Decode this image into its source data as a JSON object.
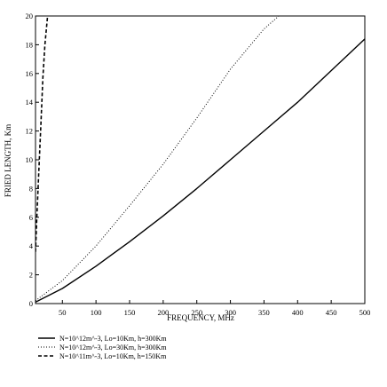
{
  "chart_data": {
    "type": "line",
    "title": "",
    "xlabel": "FREQUENCY, MHz",
    "ylabel": "FRIED LENGTH, Km",
    "xlim": [
      10,
      500
    ],
    "ylim": [
      0,
      20
    ],
    "xticks": [
      50,
      100,
      150,
      200,
      250,
      300,
      350,
      400,
      450,
      500
    ],
    "xtick_labels": [
      "50",
      "100",
      "150",
      "200",
      "250",
      "300",
      "350",
      "400",
      "450",
      "500"
    ],
    "yticks": [
      0,
      2,
      4,
      6,
      8,
      10,
      12,
      14,
      16,
      18,
      20
    ],
    "ytick_labels": [
      "0",
      "2",
      "4",
      "6",
      "8",
      "10",
      "12",
      "14",
      "16",
      "18",
      "20"
    ],
    "grid": false,
    "legend_position": "bottom",
    "series": [
      {
        "name": "N=10^12m^-3, Lo=10Km, h=300Km",
        "style": "solid",
        "color": "#000000",
        "x": [
          10,
          50,
          100,
          150,
          200,
          250,
          300,
          350,
          400,
          450,
          500
        ],
        "y": [
          0.1,
          1.05,
          2.6,
          4.3,
          6.1,
          8.0,
          10.0,
          12.0,
          14.0,
          16.2,
          18.4
        ]
      },
      {
        "name": "N=10^12m^-3, Lo=30Km, h=300Km",
        "style": "dotted",
        "color": "#000000",
        "x": [
          10,
          50,
          100,
          150,
          200,
          250,
          300,
          350,
          372
        ],
        "y": [
          0.2,
          1.6,
          4.0,
          6.8,
          9.7,
          12.9,
          16.3,
          19.1,
          20.0
        ]
      },
      {
        "name": "N=10^11m^-3, Lo=10Km, h=150Km",
        "style": "dashed",
        "color": "#000000",
        "x": [
          10,
          12,
          15,
          18,
          21,
          24,
          28
        ],
        "y": [
          3.6,
          6.0,
          9.3,
          12.5,
          15.7,
          18.0,
          20.0
        ]
      }
    ]
  }
}
